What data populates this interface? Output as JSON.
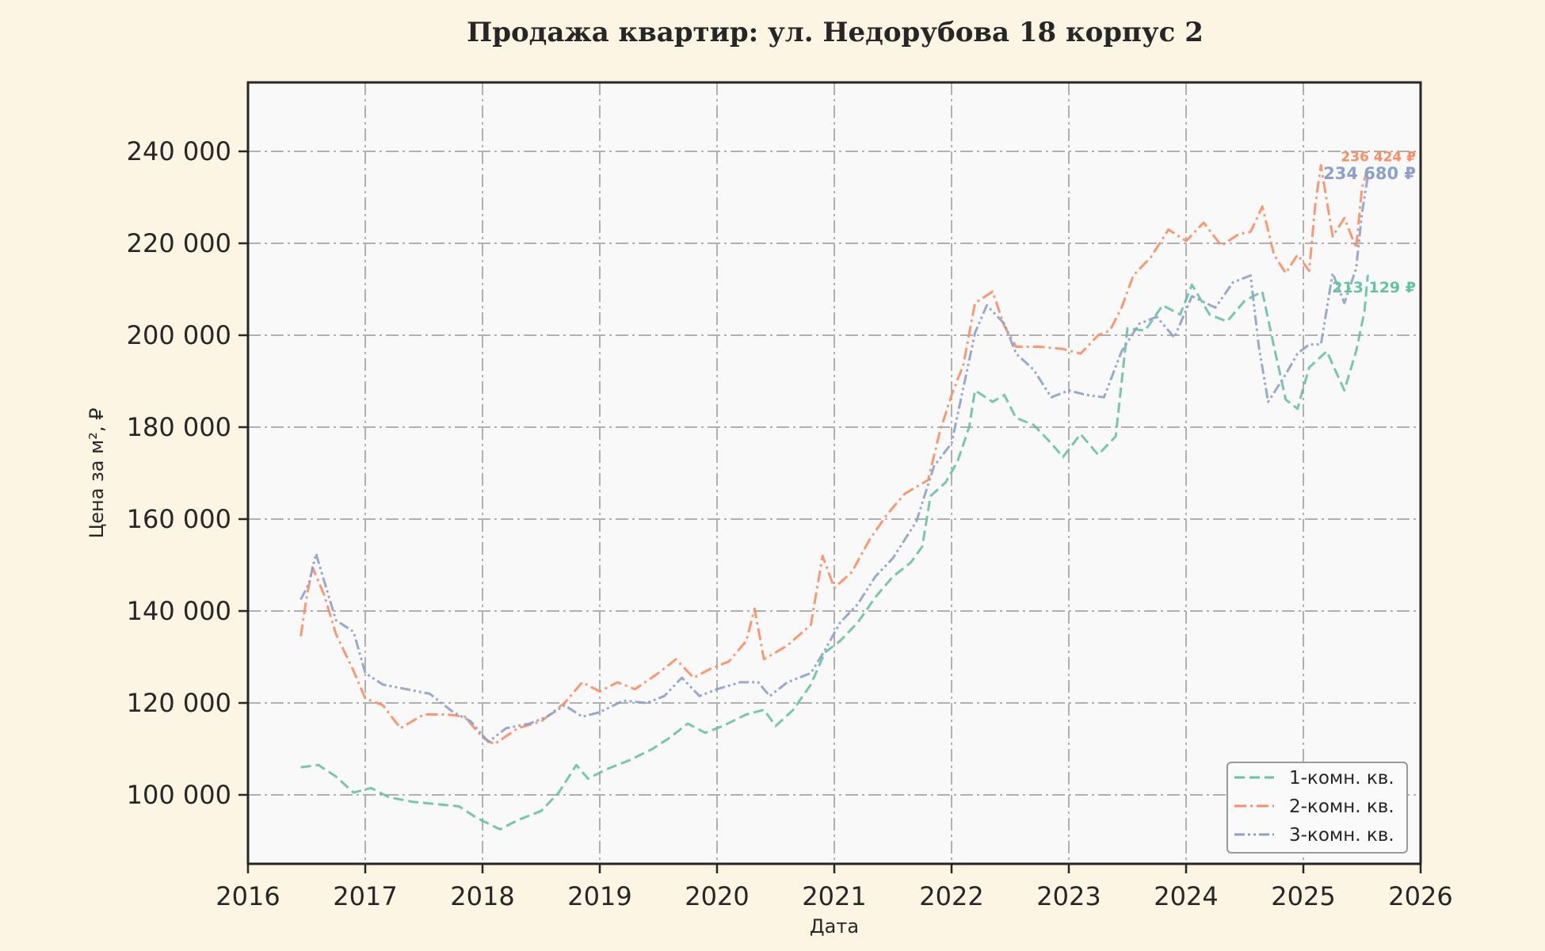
{
  "chart_data": {
    "type": "line",
    "title": "Продажа квартир: ул. Недорубова 18 корпус 2",
    "xlabel": "Дата",
    "ylabel": "Цена за м², ₽",
    "xlim": [
      2016.0,
      2026.0
    ],
    "ylim": [
      85000,
      255000
    ],
    "x_ticks": [
      "2016",
      "2017",
      "2018",
      "2019",
      "2020",
      "2021",
      "2022",
      "2023",
      "2024",
      "2025",
      "2026"
    ],
    "y_ticks": [
      100000,
      120000,
      140000,
      160000,
      180000,
      200000,
      220000,
      240000
    ],
    "y_tick_labels": [
      "100 000",
      "120 000",
      "140 000",
      "160 000",
      "180 000",
      "200 000",
      "220 000",
      "240 000"
    ],
    "grid": true,
    "legend_position": "bottom-right",
    "series": [
      {
        "name": "1-комн. кв.",
        "color": "#66c2a5",
        "dash": "dashed",
        "end_label": "213 129 ₽",
        "points": [
          [
            2016.45,
            106000
          ],
          [
            2016.6,
            106500
          ],
          [
            2016.75,
            104000
          ],
          [
            2016.9,
            100500
          ],
          [
            2017.05,
            101500
          ],
          [
            2017.2,
            99500
          ],
          [
            2017.4,
            98500
          ],
          [
            2017.6,
            98000
          ],
          [
            2017.8,
            97500
          ],
          [
            2017.95,
            95000
          ],
          [
            2018.15,
            92500
          ],
          [
            2018.3,
            94500
          ],
          [
            2018.5,
            96500
          ],
          [
            2018.65,
            100500
          ],
          [
            2018.8,
            106500
          ],
          [
            2018.9,
            103500
          ],
          [
            2019.05,
            105500
          ],
          [
            2019.25,
            107500
          ],
          [
            2019.45,
            110000
          ],
          [
            2019.6,
            112500
          ],
          [
            2019.75,
            115500
          ],
          [
            2019.9,
            113500
          ],
          [
            2020.05,
            115000
          ],
          [
            2020.25,
            117500
          ],
          [
            2020.4,
            118500
          ],
          [
            2020.5,
            115000
          ],
          [
            2020.65,
            118500
          ],
          [
            2020.8,
            124000
          ],
          [
            2020.92,
            131000
          ],
          [
            2021.05,
            133500
          ],
          [
            2021.2,
            137500
          ],
          [
            2021.35,
            143000
          ],
          [
            2021.5,
            147500
          ],
          [
            2021.65,
            150500
          ],
          [
            2021.75,
            154000
          ],
          [
            2021.82,
            165000
          ],
          [
            2021.95,
            168000
          ],
          [
            2022.05,
            172500
          ],
          [
            2022.15,
            180000
          ],
          [
            2022.2,
            188000
          ],
          [
            2022.35,
            185500
          ],
          [
            2022.45,
            187000
          ],
          [
            2022.55,
            182000
          ],
          [
            2022.7,
            180500
          ],
          [
            2022.85,
            176500
          ],
          [
            2022.95,
            173500
          ],
          [
            2023.1,
            178500
          ],
          [
            2023.25,
            174000
          ],
          [
            2023.4,
            178000
          ],
          [
            2023.5,
            201500
          ],
          [
            2023.65,
            201000
          ],
          [
            2023.8,
            206500
          ],
          [
            2023.95,
            204500
          ],
          [
            2024.05,
            211000
          ],
          [
            2024.2,
            204500
          ],
          [
            2024.35,
            203000
          ],
          [
            2024.5,
            207500
          ],
          [
            2024.65,
            209500
          ],
          [
            2024.75,
            197500
          ],
          [
            2024.85,
            186000
          ],
          [
            2024.95,
            184000
          ],
          [
            2025.05,
            193000
          ],
          [
            2025.2,
            196500
          ],
          [
            2025.35,
            188000
          ],
          [
            2025.45,
            196500
          ],
          [
            2025.52,
            205000
          ],
          [
            2025.55,
            213129
          ]
        ]
      },
      {
        "name": "2-комн. кв.",
        "color": "#fc8d62",
        "dash": "dashdot",
        "end_label": "236 424 ₽",
        "points": [
          [
            2016.45,
            134500
          ],
          [
            2016.5,
            143000
          ],
          [
            2016.55,
            149500
          ],
          [
            2016.65,
            143500
          ],
          [
            2016.75,
            135000
          ],
          [
            2016.9,
            127000
          ],
          [
            2017.0,
            121000
          ],
          [
            2017.15,
            119500
          ],
          [
            2017.3,
            114500
          ],
          [
            2017.5,
            117500
          ],
          [
            2017.7,
            117500
          ],
          [
            2017.85,
            117000
          ],
          [
            2018.0,
            112500
          ],
          [
            2018.1,
            111000
          ],
          [
            2018.3,
            114500
          ],
          [
            2018.5,
            116000
          ],
          [
            2018.7,
            120000
          ],
          [
            2018.85,
            124500
          ],
          [
            2019.0,
            122500
          ],
          [
            2019.15,
            124500
          ],
          [
            2019.3,
            123000
          ],
          [
            2019.5,
            126500
          ],
          [
            2019.65,
            129500
          ],
          [
            2019.8,
            125500
          ],
          [
            2019.95,
            127500
          ],
          [
            2020.1,
            129000
          ],
          [
            2020.25,
            133500
          ],
          [
            2020.32,
            140500
          ],
          [
            2020.4,
            129500
          ],
          [
            2020.6,
            132500
          ],
          [
            2020.8,
            137000
          ],
          [
            2020.9,
            152000
          ],
          [
            2021.0,
            145000
          ],
          [
            2021.15,
            148500
          ],
          [
            2021.3,
            155500
          ],
          [
            2021.45,
            161000
          ],
          [
            2021.6,
            165500
          ],
          [
            2021.8,
            168500
          ],
          [
            2021.9,
            179000
          ],
          [
            2022.0,
            187000
          ],
          [
            2022.1,
            193500
          ],
          [
            2022.2,
            207000
          ],
          [
            2022.35,
            209500
          ],
          [
            2022.45,
            202000
          ],
          [
            2022.55,
            197500
          ],
          [
            2022.75,
            197500
          ],
          [
            2022.95,
            197000
          ],
          [
            2023.1,
            196000
          ],
          [
            2023.25,
            200000
          ],
          [
            2023.35,
            201000
          ],
          [
            2023.45,
            206000
          ],
          [
            2023.55,
            213000
          ],
          [
            2023.7,
            217000
          ],
          [
            2023.85,
            223000
          ],
          [
            2024.0,
            220500
          ],
          [
            2024.15,
            224500
          ],
          [
            2024.3,
            219500
          ],
          [
            2024.45,
            222000
          ],
          [
            2024.55,
            222500
          ],
          [
            2024.65,
            228000
          ],
          [
            2024.75,
            217500
          ],
          [
            2024.85,
            213500
          ],
          [
            2024.95,
            217500
          ],
          [
            2025.05,
            214000
          ],
          [
            2025.1,
            228000
          ],
          [
            2025.15,
            237000
          ],
          [
            2025.25,
            221500
          ],
          [
            2025.35,
            225500
          ],
          [
            2025.45,
            219000
          ],
          [
            2025.5,
            232000
          ],
          [
            2025.55,
            236424
          ]
        ]
      },
      {
        "name": "3-комн. кв.",
        "color": "#8da0cb",
        "dash": "dashdotdot",
        "end_label": "234 680 ₽",
        "points": [
          [
            2016.45,
            142500
          ],
          [
            2016.52,
            146000
          ],
          [
            2016.58,
            152500
          ],
          [
            2016.65,
            146500
          ],
          [
            2016.75,
            138000
          ],
          [
            2016.9,
            135500
          ],
          [
            2017.0,
            126500
          ],
          [
            2017.15,
            124000
          ],
          [
            2017.35,
            123000
          ],
          [
            2017.55,
            122000
          ],
          [
            2017.75,
            118000
          ],
          [
            2017.9,
            116000
          ],
          [
            2018.05,
            111500
          ],
          [
            2018.2,
            114500
          ],
          [
            2018.4,
            115500
          ],
          [
            2018.55,
            117000
          ],
          [
            2018.7,
            119500
          ],
          [
            2018.85,
            117000
          ],
          [
            2019.0,
            118000
          ],
          [
            2019.2,
            120500
          ],
          [
            2019.4,
            120000
          ],
          [
            2019.55,
            121500
          ],
          [
            2019.7,
            125500
          ],
          [
            2019.85,
            121500
          ],
          [
            2020.0,
            123000
          ],
          [
            2020.2,
            124500
          ],
          [
            2020.35,
            124500
          ],
          [
            2020.45,
            121500
          ],
          [
            2020.6,
            124500
          ],
          [
            2020.8,
            126500
          ],
          [
            2020.92,
            131500
          ],
          [
            2021.05,
            137500
          ],
          [
            2021.2,
            141500
          ],
          [
            2021.35,
            147500
          ],
          [
            2021.5,
            151500
          ],
          [
            2021.7,
            159500
          ],
          [
            2021.85,
            171500
          ],
          [
            2022.0,
            176500
          ],
          [
            2022.1,
            188500
          ],
          [
            2022.2,
            200500
          ],
          [
            2022.3,
            206500
          ],
          [
            2022.45,
            202500
          ],
          [
            2022.55,
            196000
          ],
          [
            2022.7,
            192500
          ],
          [
            2022.85,
            186500
          ],
          [
            2023.0,
            188000
          ],
          [
            2023.15,
            187000
          ],
          [
            2023.3,
            186500
          ],
          [
            2023.45,
            196500
          ],
          [
            2023.6,
            202500
          ],
          [
            2023.75,
            204000
          ],
          [
            2023.9,
            199500
          ],
          [
            2024.05,
            208500
          ],
          [
            2024.25,
            206000
          ],
          [
            2024.4,
            211500
          ],
          [
            2024.55,
            213000
          ],
          [
            2024.62,
            197500
          ],
          [
            2024.7,
            185500
          ],
          [
            2024.85,
            191500
          ],
          [
            2024.95,
            196000
          ],
          [
            2025.05,
            198000
          ],
          [
            2025.15,
            198000
          ],
          [
            2025.25,
            213500
          ],
          [
            2025.35,
            207000
          ],
          [
            2025.45,
            214500
          ],
          [
            2025.5,
            226500
          ],
          [
            2025.55,
            234680
          ]
        ]
      }
    ]
  }
}
